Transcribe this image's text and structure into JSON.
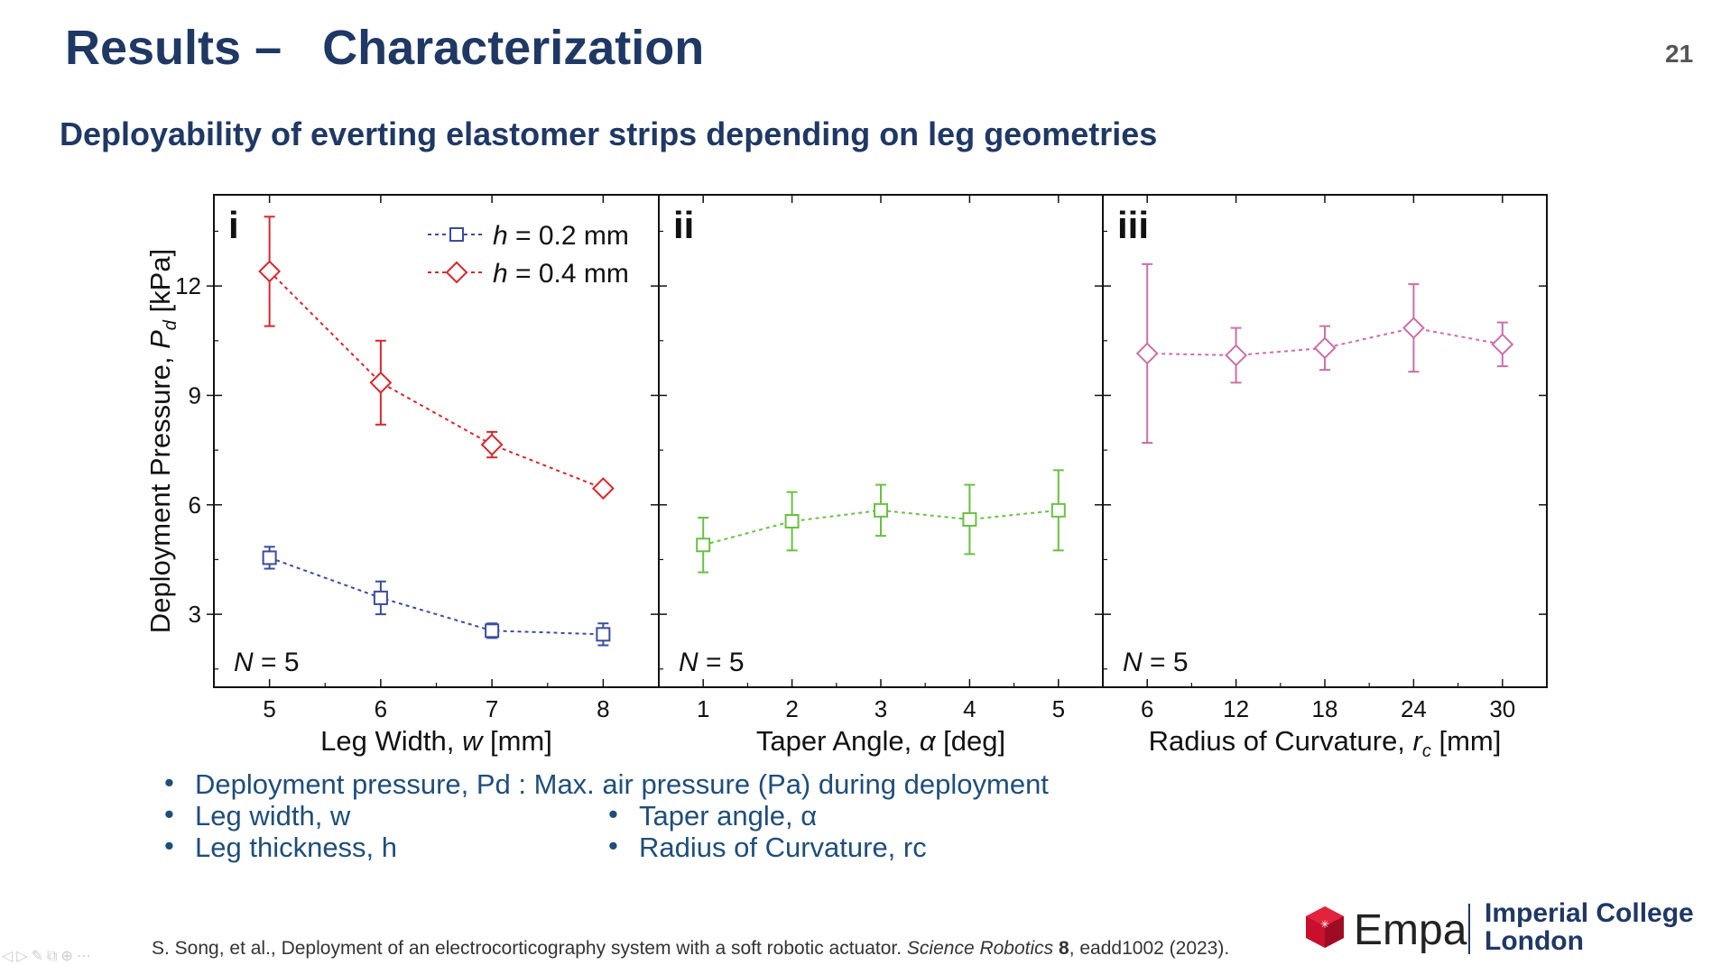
{
  "slide": {
    "title": "Results –   Characterization",
    "number": "21",
    "subtitle": "Deployability of everting elastomer strips depending on leg geometries"
  },
  "colors": {
    "title": "#1f3864",
    "h02": "#3b4ba0",
    "h04": "#d9262c",
    "taper": "#6abf45",
    "curvature": "#cc6fa8",
    "bullets": "#1f4e79"
  },
  "chart_data": [
    {
      "type": "scatter",
      "panel_label": "i",
      "xlabel": "Leg Width, w [mm]",
      "ylabel": "Deployment Pressure, Pd [kPa]",
      "x": [
        5,
        6,
        7,
        8
      ],
      "xlim": [
        4.5,
        8.5
      ],
      "ylim": [
        1,
        14.5
      ],
      "xticks": [
        5,
        6,
        7,
        8
      ],
      "yticks": [
        3,
        6,
        9,
        12
      ],
      "legend": "top-right",
      "annotation": "N = 5",
      "series": [
        {
          "name": "h = 0.2 mm",
          "marker": "square",
          "color": "#3b4ba0",
          "values": [
            4.55,
            3.45,
            2.55,
            2.45
          ],
          "err": [
            0.3,
            0.45,
            0.2,
            0.3
          ]
        },
        {
          "name": "h = 0.4 mm",
          "marker": "diamond",
          "color": "#d9262c",
          "values": [
            12.4,
            9.35,
            7.65,
            6.45
          ],
          "err": [
            1.5,
            1.15,
            0.35,
            0.1
          ]
        }
      ]
    },
    {
      "type": "scatter",
      "panel_label": "ii",
      "xlabel": "Taper Angle, α [deg]",
      "x": [
        1,
        2,
        3,
        4,
        5
      ],
      "xlim": [
        0.5,
        5.5
      ],
      "ylim": [
        1,
        14.5
      ],
      "xticks": [
        1,
        2,
        3,
        4,
        5
      ],
      "annotation": "N = 5",
      "series": [
        {
          "marker": "square",
          "color": "#6abf45",
          "values": [
            4.9,
            5.55,
            5.85,
            5.6,
            5.85
          ],
          "err": [
            0.75,
            0.8,
            0.7,
            0.95,
            1.1
          ]
        }
      ]
    },
    {
      "type": "scatter",
      "panel_label": "iii",
      "xlabel": "Radius of Curvature, rc [mm]",
      "x": [
        6,
        12,
        18,
        24,
        30
      ],
      "xlim": [
        3,
        33
      ],
      "ylim": [
        1,
        14.5
      ],
      "xticks": [
        6,
        12,
        18,
        24,
        30
      ],
      "annotation": "N = 5",
      "series": [
        {
          "marker": "diamond",
          "color": "#cc6fa8",
          "values": [
            10.15,
            10.1,
            10.3,
            10.85,
            10.4
          ],
          "err": [
            2.45,
            0.75,
            0.6,
            1.2,
            0.6
          ]
        }
      ]
    }
  ],
  "bullets": [
    "Deployment pressure, Pd : Max. air pressure (Pa) during deployment",
    "Leg width, w",
    "Leg thickness, h",
    "Taper angle, α",
    "Radius of Curvature, rc"
  ],
  "citation": {
    "authors": "S. Song, et al., Deployment of an electrocorticography system with a soft robotic actuator. ",
    "journal": "Science Robotics",
    "volume": "8",
    "rest": ", eadd1002 (2023)."
  },
  "logos": {
    "empa": "Empa",
    "imperial_line1": "Imperial College",
    "imperial_line2": "London"
  }
}
